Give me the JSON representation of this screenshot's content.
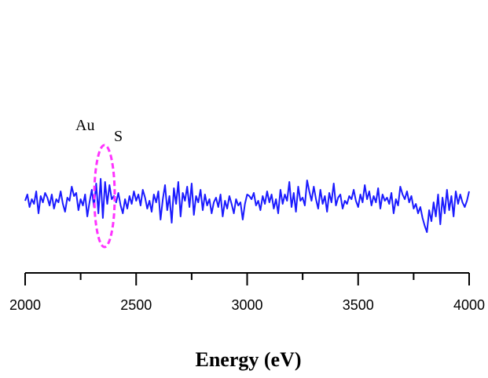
{
  "chart_data": {
    "type": "line",
    "x_label": "Energy (eV)",
    "annotations": [
      "Au",
      "S"
    ],
    "color": "#1a1aff",
    "highlight_color": "#ff33ff",
    "xlim": [
      2000,
      4000
    ],
    "ylim": [
      0,
      100
    ],
    "xticks": [
      2000,
      2500,
      3000,
      3500,
      4000
    ],
    "xminorticks": [
      2250,
      2750,
      3250,
      3750
    ],
    "x": [
      2000,
      2010,
      2020,
      2030,
      2040,
      2050,
      2060,
      2070,
      2080,
      2090,
      2100,
      2110,
      2120,
      2130,
      2140,
      2150,
      2160,
      2170,
      2180,
      2190,
      2200,
      2210,
      2220,
      2230,
      2240,
      2250,
      2260,
      2270,
      2280,
      2290,
      2300,
      2310,
      2320,
      2330,
      2340,
      2350,
      2360,
      2370,
      2380,
      2390,
      2400,
      2410,
      2420,
      2430,
      2440,
      2450,
      2460,
      2470,
      2480,
      2490,
      2500,
      2510,
      2520,
      2530,
      2540,
      2550,
      2560,
      2570,
      2580,
      2590,
      2600,
      2610,
      2620,
      2630,
      2640,
      2650,
      2660,
      2670,
      2680,
      2690,
      2700,
      2710,
      2720,
      2730,
      2740,
      2750,
      2760,
      2770,
      2780,
      2790,
      2800,
      2810,
      2820,
      2830,
      2840,
      2850,
      2860,
      2870,
      2880,
      2890,
      2900,
      2910,
      2920,
      2930,
      2940,
      2950,
      2960,
      2970,
      2980,
      2990,
      3000,
      3010,
      3020,
      3030,
      3040,
      3050,
      3060,
      3070,
      3080,
      3090,
      3100,
      3110,
      3120,
      3130,
      3140,
      3150,
      3160,
      3170,
      3180,
      3190,
      3200,
      3210,
      3220,
      3230,
      3240,
      3250,
      3260,
      3270,
      3280,
      3290,
      3300,
      3310,
      3320,
      3330,
      3340,
      3350,
      3360,
      3370,
      3380,
      3390,
      3400,
      3410,
      3420,
      3430,
      3440,
      3450,
      3460,
      3470,
      3480,
      3490,
      3500,
      3510,
      3520,
      3530,
      3540,
      3550,
      3560,
      3570,
      3580,
      3590,
      3600,
      3610,
      3620,
      3630,
      3640,
      3650,
      3660,
      3670,
      3680,
      3690,
      3700,
      3710,
      3720,
      3730,
      3740,
      3750,
      3760,
      3770,
      3780,
      3790,
      3800,
      3810,
      3820,
      3830,
      3840,
      3850,
      3860,
      3870,
      3880,
      3890,
      3900,
      3910,
      3920,
      3930,
      3940,
      3950,
      3960,
      3970,
      3980,
      3990,
      4000
    ],
    "values": [
      46,
      50,
      42,
      47,
      44,
      52,
      38,
      49,
      45,
      51,
      48,
      43,
      50,
      41,
      47,
      45,
      52,
      44,
      39,
      48,
      46,
      55,
      49,
      51,
      40,
      47,
      43,
      50,
      36,
      45,
      53,
      42,
      57,
      38,
      60,
      35,
      58,
      44,
      56,
      47,
      49,
      45,
      51,
      43,
      38,
      47,
      41,
      49,
      44,
      52,
      46,
      50,
      43,
      53,
      48,
      41,
      46,
      39,
      50,
      45,
      52,
      34,
      47,
      56,
      40,
      49,
      32,
      54,
      44,
      58,
      36,
      51,
      46,
      55,
      42,
      57,
      37,
      49,
      45,
      53,
      40,
      50,
      43,
      47,
      38,
      45,
      48,
      42,
      50,
      36,
      46,
      41,
      49,
      44,
      38,
      47,
      43,
      45,
      34,
      44,
      50,
      49,
      47,
      51,
      43,
      46,
      40,
      49,
      44,
      52,
      45,
      50,
      41,
      47,
      38,
      53,
      44,
      50,
      46,
      58,
      42,
      51,
      39,
      55,
      46,
      48,
      43,
      59,
      52,
      46,
      55,
      47,
      41,
      53,
      44,
      49,
      39,
      51,
      45,
      57,
      43,
      48,
      50,
      41,
      46,
      44,
      49,
      47,
      53,
      46,
      42,
      50,
      45,
      56,
      47,
      52,
      43,
      49,
      45,
      54,
      41,
      50,
      46,
      48,
      44,
      51,
      38,
      47,
      43,
      55,
      50,
      47,
      52,
      45,
      49,
      41,
      44,
      38,
      42,
      35,
      30,
      26,
      40,
      33,
      45,
      36,
      50,
      31,
      48,
      38,
      53,
      40,
      49,
      36,
      52,
      44,
      50,
      45,
      42,
      46,
      52
    ]
  }
}
